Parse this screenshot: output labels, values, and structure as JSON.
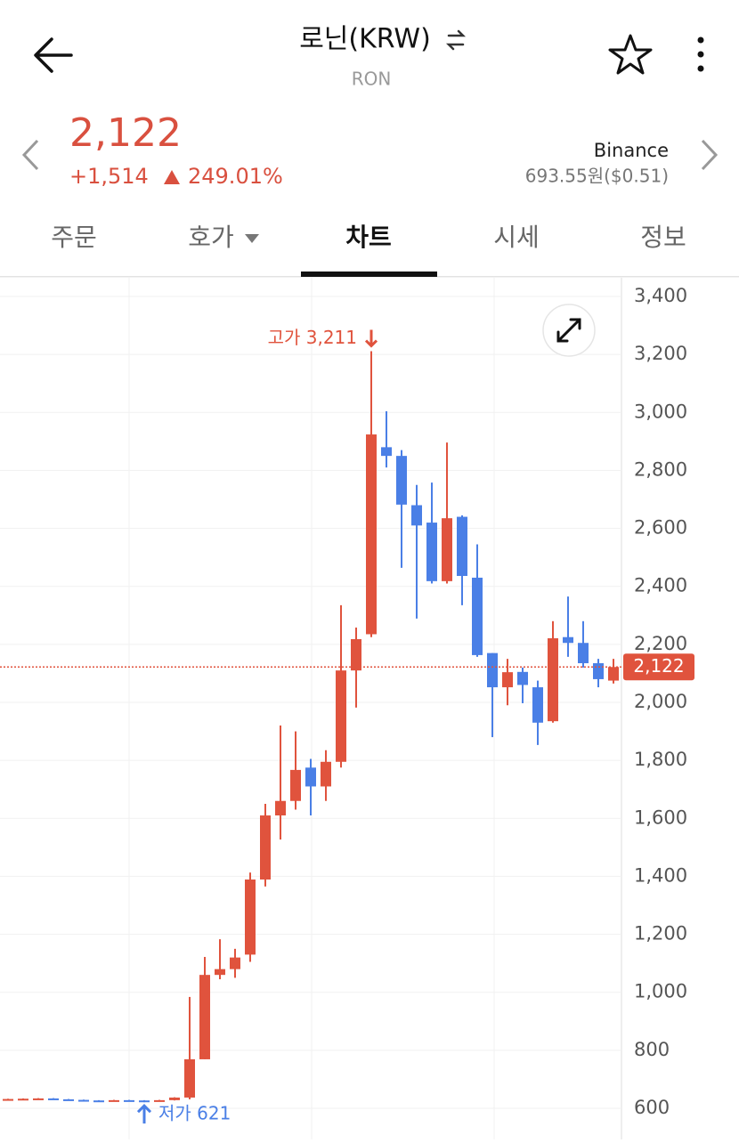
{
  "header": {
    "title": "로닌(KRW)",
    "subtitle": "RON"
  },
  "price": {
    "current": "2,122",
    "change": "+1,514",
    "change_rate": "249.01%",
    "exchange": "Binance",
    "exchange_price": "693.55원($0.51)"
  },
  "tabs": [
    "주문",
    "호가",
    "차트",
    "시세",
    "정보"
  ],
  "chart_data": {
    "type": "candlestick",
    "up_color": "#e0533d",
    "down_color": "#4a7fe6",
    "open": [
      630,
      632,
      633,
      634,
      631,
      629,
      627,
      626,
      628,
      627,
      625,
      628,
      637,
      769,
      1060,
      1080,
      1130,
      1389,
      1610,
      1660,
      1775,
      1710,
      1795,
      2110,
      2235,
      2880,
      2850,
      2680,
      2620,
      2418,
      2640,
      2430,
      2170,
      2052,
      2105,
      2052,
      1935,
      2225,
      2205,
      2135,
      2075
    ],
    "close": [
      632,
      633,
      634,
      631,
      629,
      627,
      626,
      628,
      627,
      625,
      628,
      637,
      769,
      1060,
      1080,
      1120,
      1389,
      1610,
      1660,
      1767,
      1710,
      1795,
      2110,
      2218,
      2924,
      2850,
      2682,
      2610,
      2418,
      2635,
      2436,
      2163,
      2052,
      2104,
      2060,
      1930,
      2221,
      2205,
      2135,
      2080,
      2122
    ],
    "high": [
      633,
      634,
      635,
      635,
      632,
      630,
      628,
      629,
      629,
      628,
      629,
      638,
      984,
      1122,
      1183,
      1150,
      1413,
      1650,
      1920,
      1900,
      1805,
      1835,
      2335,
      2258,
      3211,
      3004,
      2870,
      2750,
      2758,
      2896,
      2645,
      2545,
      2170,
      2150,
      2120,
      2075,
      2280,
      2365,
      2280,
      2150,
      2150
    ],
    "low": [
      629,
      631,
      632,
      630,
      628,
      626,
      625,
      625,
      624,
      621,
      624,
      627,
      631,
      769,
      1045,
      1050,
      1105,
      1365,
      1527,
      1630,
      1610,
      1660,
      1775,
      1982,
      2225,
      2810,
      2464,
      2289,
      2410,
      2410,
      2335,
      2157,
      1880,
      1990,
      1997,
      1853,
      1930,
      2157,
      2120,
      2052,
      2065
    ],
    "ylim": [
      600,
      3400
    ],
    "yticks": [
      600,
      800,
      {
        "value": 1000,
        "label": "1,000"
      },
      {
        "value": 1200,
        "label": "1,200"
      },
      {
        "value": 1400,
        "label": "1,400"
      },
      {
        "value": 1600,
        "label": "1,600"
      },
      {
        "value": 1800,
        "label": "1,800"
      },
      {
        "value": 2000,
        "label": "2,000"
      },
      {
        "value": 2200,
        "label": "2,200"
      },
      {
        "value": 2400,
        "label": "2,400"
      },
      {
        "value": 2600,
        "label": "2,600"
      },
      {
        "value": 2800,
        "label": "2,800"
      },
      {
        "value": 3000,
        "label": "3,000"
      },
      {
        "value": 3200,
        "label": "3,200"
      },
      {
        "value": 3400,
        "label": "3,400"
      }
    ],
    "grid": true,
    "high_label": "고가 3,211",
    "low_label": "저가 621",
    "last_price": {
      "value": 2122,
      "label": "2,122"
    }
  }
}
